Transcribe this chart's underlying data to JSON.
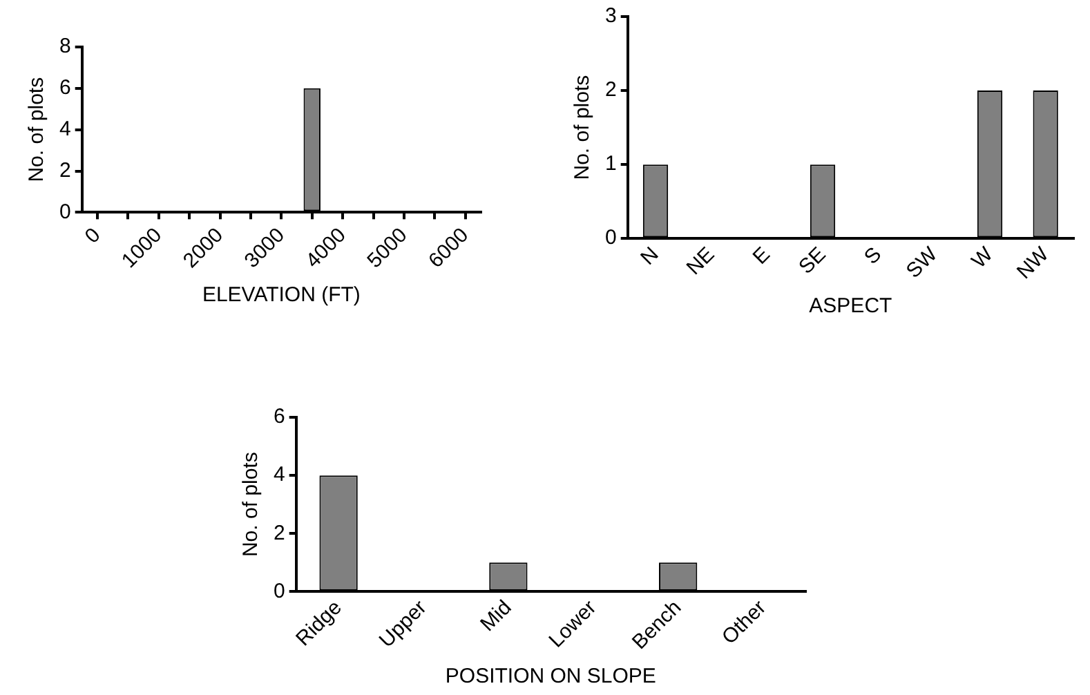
{
  "chart_data": [
    {
      "type": "bar",
      "categories": [
        "0",
        null,
        "1000",
        null,
        "2000",
        null,
        "3000",
        null,
        "4000",
        null,
        "5000",
        null,
        "6000"
      ],
      "values": [
        0,
        0,
        0,
        0,
        0,
        0,
        0,
        6,
        0,
        0,
        0,
        0,
        0
      ],
      "color": "#808080",
      "xlabel": "ELEVATION (FT)",
      "ylabel": "No. of plots",
      "ylim": [
        0,
        8
      ],
      "yticks": [
        0,
        2,
        4,
        6,
        8
      ],
      "grid": false,
      "legend": false
    },
    {
      "type": "bar",
      "categories": [
        "N",
        "NE",
        "E",
        "SE",
        "S",
        "SW",
        "W",
        "NW"
      ],
      "values": [
        1,
        0,
        0,
        1,
        0,
        0,
        2,
        2
      ],
      "color": "#808080",
      "xlabel": "ASPECT",
      "ylabel": "No. of plots",
      "ylim": [
        0,
        3
      ],
      "yticks": [
        0,
        1,
        2,
        3
      ],
      "grid": false,
      "legend": false
    },
    {
      "type": "bar",
      "categories": [
        "Ridge",
        "Upper",
        "Mid",
        "Lower",
        "Bench",
        "Other"
      ],
      "values": [
        4,
        0,
        1,
        0,
        1,
        0
      ],
      "color": "#808080",
      "xlabel": "POSITION ON SLOPE",
      "ylabel": "No. of plots",
      "ylim": [
        0,
        6
      ],
      "yticks": [
        0,
        2,
        4,
        6
      ],
      "grid": false,
      "legend": false
    }
  ]
}
